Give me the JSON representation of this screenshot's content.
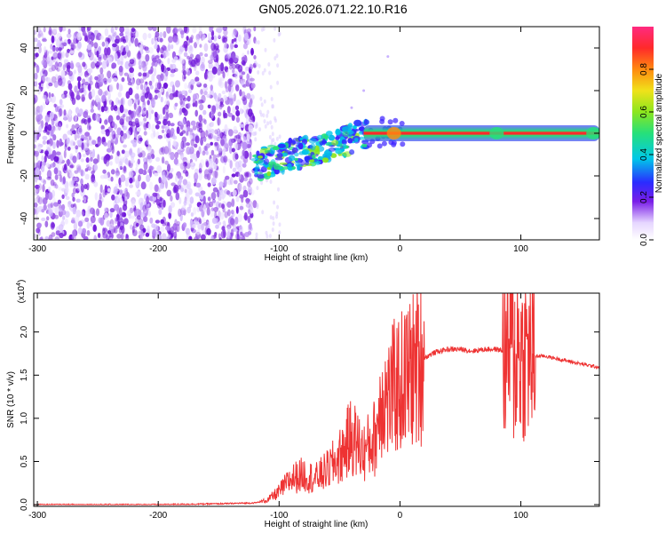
{
  "title": "GN05.2026.071.22.10.R16",
  "colorbar": {
    "label": "Normalized spectral amplitude",
    "ticks": [
      "0.0",
      "0.2",
      "0.4",
      "0.6",
      "0.8"
    ],
    "tick_values": [
      0.0,
      0.2,
      0.4,
      0.6,
      0.8
    ],
    "range": [
      0,
      1
    ]
  },
  "chart_data": [
    {
      "type": "heatmap",
      "title": "GN05.2026.071.22.10.R16",
      "xlabel": "Height of straight line (km)",
      "ylabel": "Frequency (Hz)",
      "xlim": [
        -303,
        165
      ],
      "ylim": [
        -50,
        50
      ],
      "xticks": [
        -300,
        -200,
        -100,
        0,
        100
      ],
      "xtick_labels": [
        "-300",
        "-200",
        "-100",
        "0",
        "100"
      ],
      "yticks": [
        -40,
        -20,
        0,
        20,
        40
      ],
      "ytick_labels": [
        "-40",
        "-20",
        "0",
        "20",
        "40"
      ],
      "description_regions": [
        {
          "x_range": [
            -303,
            -120
          ],
          "f_range": [
            -50,
            50
          ],
          "amplitude": 0.1,
          "kind": "noise"
        },
        {
          "x_range": [
            -120,
            -30
          ],
          "f_center_start": -15,
          "f_center_end": 0,
          "amplitude": 0.35,
          "kind": "scattered-line"
        },
        {
          "x_range": [
            -30,
            165
          ],
          "f_center": 0,
          "amplitude": 0.95,
          "kind": "carrier-line"
        }
      ]
    },
    {
      "type": "line",
      "xlabel": "Height of straight line (km)",
      "ylabel": "SNR (10 * v/v)",
      "y_multiplier": "(x10",
      "y_multiplier_exp": "4",
      "y_multiplier_close": ")",
      "xlim": [
        -303,
        165
      ],
      "ylim": [
        -0.02,
        2.45
      ],
      "xticks": [
        -300,
        -200,
        -100,
        0,
        100
      ],
      "xtick_labels": [
        "-300",
        "-200",
        "-100",
        "0",
        "100"
      ],
      "yticks": [
        0.0,
        0.5,
        1.0,
        1.5,
        2.0
      ],
      "ytick_labels": [
        "0.0",
        "0.5",
        "1.0",
        "1.5",
        "2.0"
      ],
      "color": "#ee3333",
      "series": [
        {
          "name": "SNR",
          "x": [
            -303,
            -250,
            -200,
            -150,
            -120,
            -110,
            -100,
            -90,
            -80,
            -70,
            -60,
            -50,
            -40,
            -30,
            -20,
            -15,
            -10,
            -5,
            0,
            10,
            20,
            30,
            40,
            50,
            60,
            70,
            80,
            85,
            90,
            93,
            95,
            97,
            100,
            105,
            110,
            112,
            120,
            130,
            140,
            150,
            165
          ],
          "y": [
            0.0,
            0.0,
            0.0,
            0.01,
            0.02,
            0.05,
            0.15,
            0.3,
            0.35,
            0.3,
            0.4,
            0.55,
            0.8,
            0.6,
            0.8,
            1.3,
            1.2,
            1.35,
            1.4,
            1.55,
            1.7,
            1.77,
            1.8,
            1.8,
            1.78,
            1.8,
            1.8,
            1.78,
            1.75,
            1.9,
            1.4,
            1.9,
            1.72,
            1.74,
            1.75,
            1.72,
            1.72,
            1.69,
            1.66,
            1.63,
            1.59
          ]
        }
      ],
      "noise_amplitude": [
        {
          "x_range": [
            -303,
            -115
          ],
          "amp": 0.008
        },
        {
          "x_range": [
            -115,
            -60
          ],
          "amp": 0.18
        },
        {
          "x_range": [
            -60,
            -10
          ],
          "amp": 0.45
        },
        {
          "x_range": [
            -10,
            20
          ],
          "amp": 0.15
        },
        {
          "x_range": [
            20,
            85
          ],
          "amp": 0.03
        },
        {
          "x_range": [
            85,
            112
          ],
          "amp": 0.35
        },
        {
          "x_range": [
            112,
            165
          ],
          "amp": 0.02
        }
      ]
    }
  ]
}
